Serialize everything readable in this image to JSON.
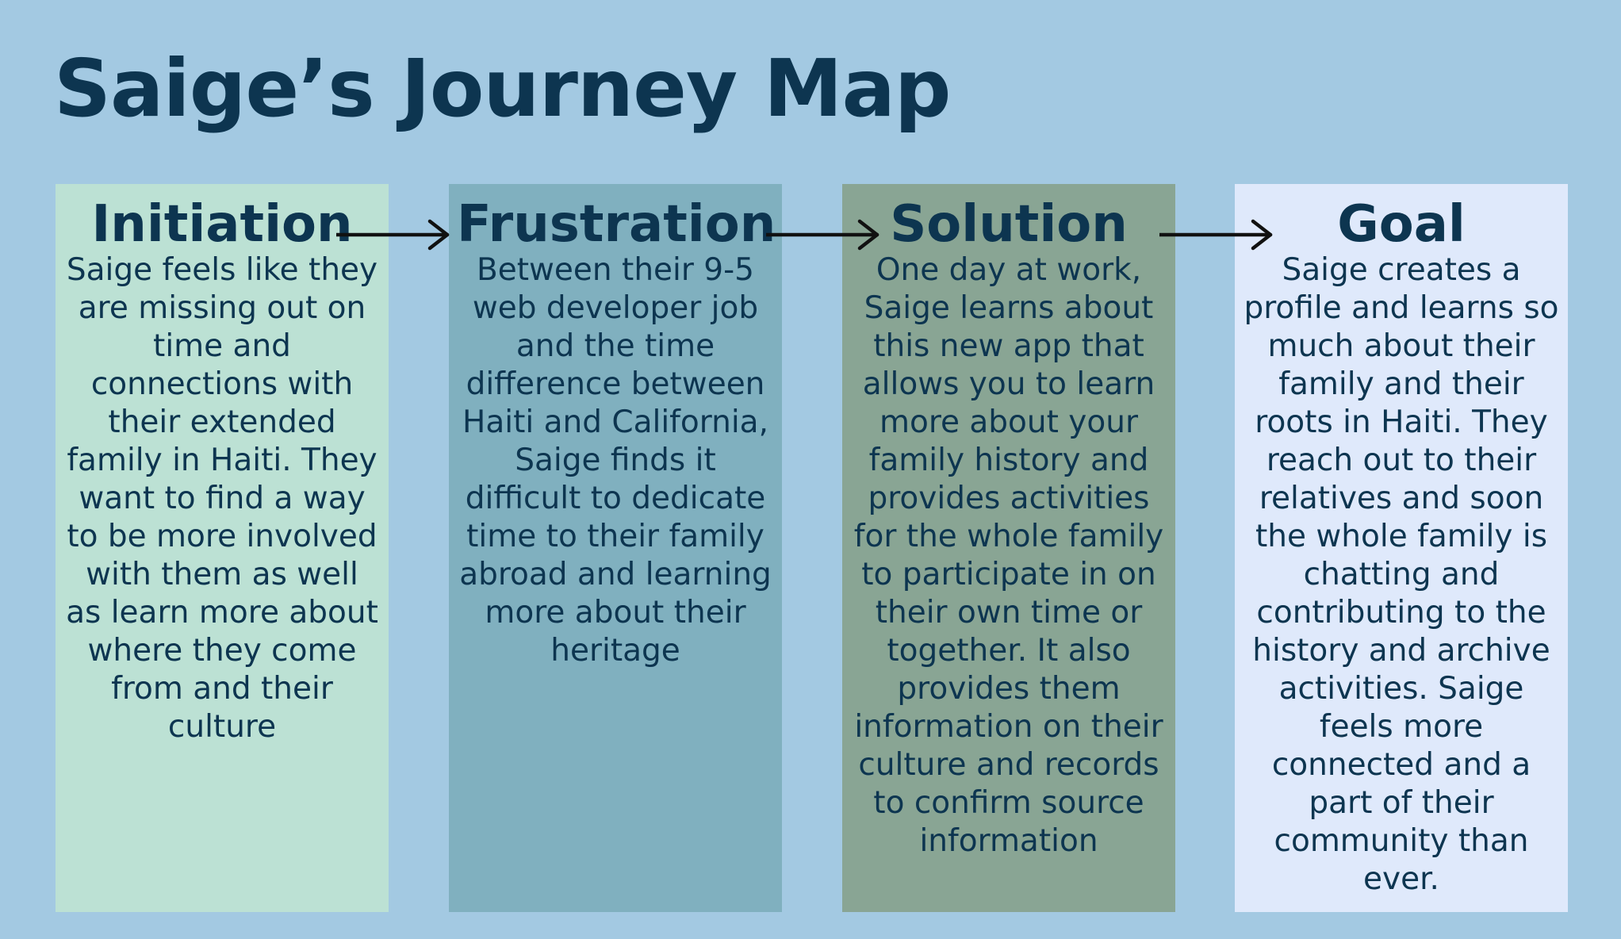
{
  "title": "Saige’s Journey Map",
  "stages": [
    {
      "heading": "Initiation",
      "text": "Saige feels like they are missing out on time and connections with their extended family in Haiti. They want to find a way to be more involved with them as well as learn more about where they come from and their culture",
      "color": "#bce1d4"
    },
    {
      "heading": "Frustration",
      "text": "Between their 9-5 web developer job and the time difference between Haiti and California, Saige finds it difficult to dedicate time to their family abroad and learning more about their heritage",
      "color": "#80b0bf"
    },
    {
      "heading": "Solution",
      "text": "One day at work, Saige learns about this new app that allows you to learn more about your family history and provides activities for the whole family to participate in on their own time or together. It also provides them information on their culture and records to confirm source information",
      "color": "#89a594"
    },
    {
      "heading": "Goal",
      "text": "Saige creates a profile and learns so much about their family and their roots in Haiti. They reach out to their relatives and soon the whole family is chatting and contributing to the history and archive activities. Saige feels more connected and a part of their community than ever.",
      "color": "#dfe9fb"
    }
  ],
  "colors": {
    "background": "#a3c9e2",
    "text": "#0d3550",
    "arrow": "#111111"
  }
}
